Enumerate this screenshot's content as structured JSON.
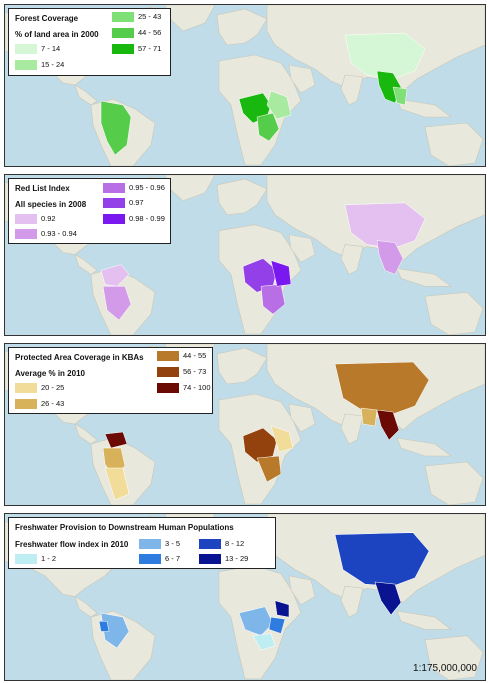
{
  "colors": {
    "ocean": "#bfdce8",
    "land": "#e9e8dc",
    "land_stroke": "#c9c7b8"
  },
  "panels": [
    {
      "title": "Forest Coverage",
      "subtitle": "% of land area in 2000",
      "classes": [
        {
          "label": "7 - 14",
          "color": "#d5f7d5"
        },
        {
          "label": "15 - 24",
          "color": "#a8eba0"
        },
        {
          "label": "25 - 43",
          "color": "#7fe077"
        },
        {
          "label": "44 - 56",
          "color": "#55cc4a"
        },
        {
          "label": "57 - 71",
          "color": "#19b80e"
        }
      ]
    },
    {
      "title": "Red List Index",
      "subtitle": "All species in 2008",
      "classes": [
        {
          "label": "0.92",
          "color": "#e4c0f0"
        },
        {
          "label": "0.93 - 0.94",
          "color": "#d29ae8"
        },
        {
          "label": "0.95 - 0.96",
          "color": "#b86fe6"
        },
        {
          "label": "0.97",
          "color": "#9340e8"
        },
        {
          "label": "0.98 - 0.99",
          "color": "#7a18f0"
        }
      ]
    },
    {
      "title": "Protected Area Coverage in KBAs",
      "subtitle": "Average % in 2010",
      "classes": [
        {
          "label": "20 - 25",
          "color": "#f2dc9a"
        },
        {
          "label": "26 - 43",
          "color": "#d8b25a"
        },
        {
          "label": "44 - 55",
          "color": "#b87a2a"
        },
        {
          "label": "56 - 73",
          "color": "#93420d"
        },
        {
          "label": "74 - 100",
          "color": "#6b0a05"
        }
      ]
    },
    {
      "title": "Freshwater Provision to Downstream Human Populations",
      "subtitle": "Freshwater flow index in 2010",
      "classes": [
        {
          "label": "1 - 2",
          "color": "#bfeef2"
        },
        {
          "label": "3 - 5",
          "color": "#7fb6ea"
        },
        {
          "label": "6 - 7",
          "color": "#2f7ce0"
        },
        {
          "label": "8 - 12",
          "color": "#1c44c0"
        },
        {
          "label": "13 - 29",
          "color": "#0a1490"
        }
      ]
    }
  ],
  "scale_label": "1:175,000,000"
}
